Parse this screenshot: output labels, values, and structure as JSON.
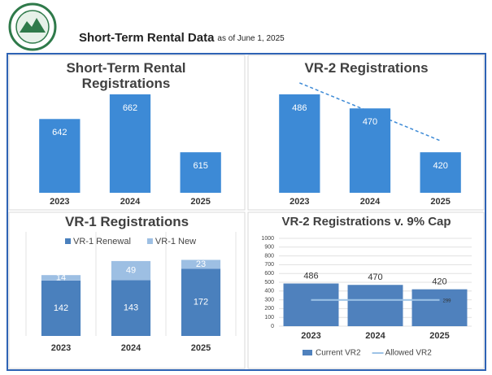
{
  "header": {
    "title": "Short-Term Rental Data",
    "subtitle": "as of June 1, 2025"
  },
  "chart_data": [
    {
      "type": "bar",
      "title": "Short-Term Rental Registrations",
      "categories": [
        "2023",
        "2024",
        "2025"
      ],
      "values": [
        642,
        662,
        615
      ],
      "color": "#3d8ad6"
    },
    {
      "type": "bar",
      "title": "VR-2 Registrations",
      "categories": [
        "2023",
        "2024",
        "2025"
      ],
      "values": [
        486,
        470,
        420
      ],
      "color": "#3d8ad6",
      "trendline": true
    },
    {
      "type": "stacked_bar",
      "title": "VR-1 Registrations",
      "categories": [
        "2023",
        "2024",
        "2025"
      ],
      "legend": "top",
      "series": [
        {
          "name": "VR-1 Renewal",
          "color": "#4a80bd",
          "values": [
            142,
            143,
            172
          ]
        },
        {
          "name": "VR-1 New",
          "color": "#9dbfe3",
          "values": [
            14,
            49,
            23
          ]
        }
      ]
    },
    {
      "type": "bar_line",
      "title": "VR-2 Registrations v. 9% Cap",
      "categories": [
        "2023",
        "2024",
        "2025"
      ],
      "legend": "bottom",
      "grid": true,
      "ylim": [
        0,
        1000
      ],
      "yticks": [
        0,
        100,
        200,
        300,
        400,
        500,
        600,
        700,
        800,
        900,
        1000
      ],
      "series": [
        {
          "name": "Current VR2",
          "type": "bar",
          "color": "#4f81bd",
          "values": [
            486,
            470,
            420
          ]
        },
        {
          "name": "Allowed VR2",
          "type": "line",
          "color": "#9dc3e6",
          "values": [
            299,
            299,
            299
          ]
        }
      ]
    }
  ]
}
